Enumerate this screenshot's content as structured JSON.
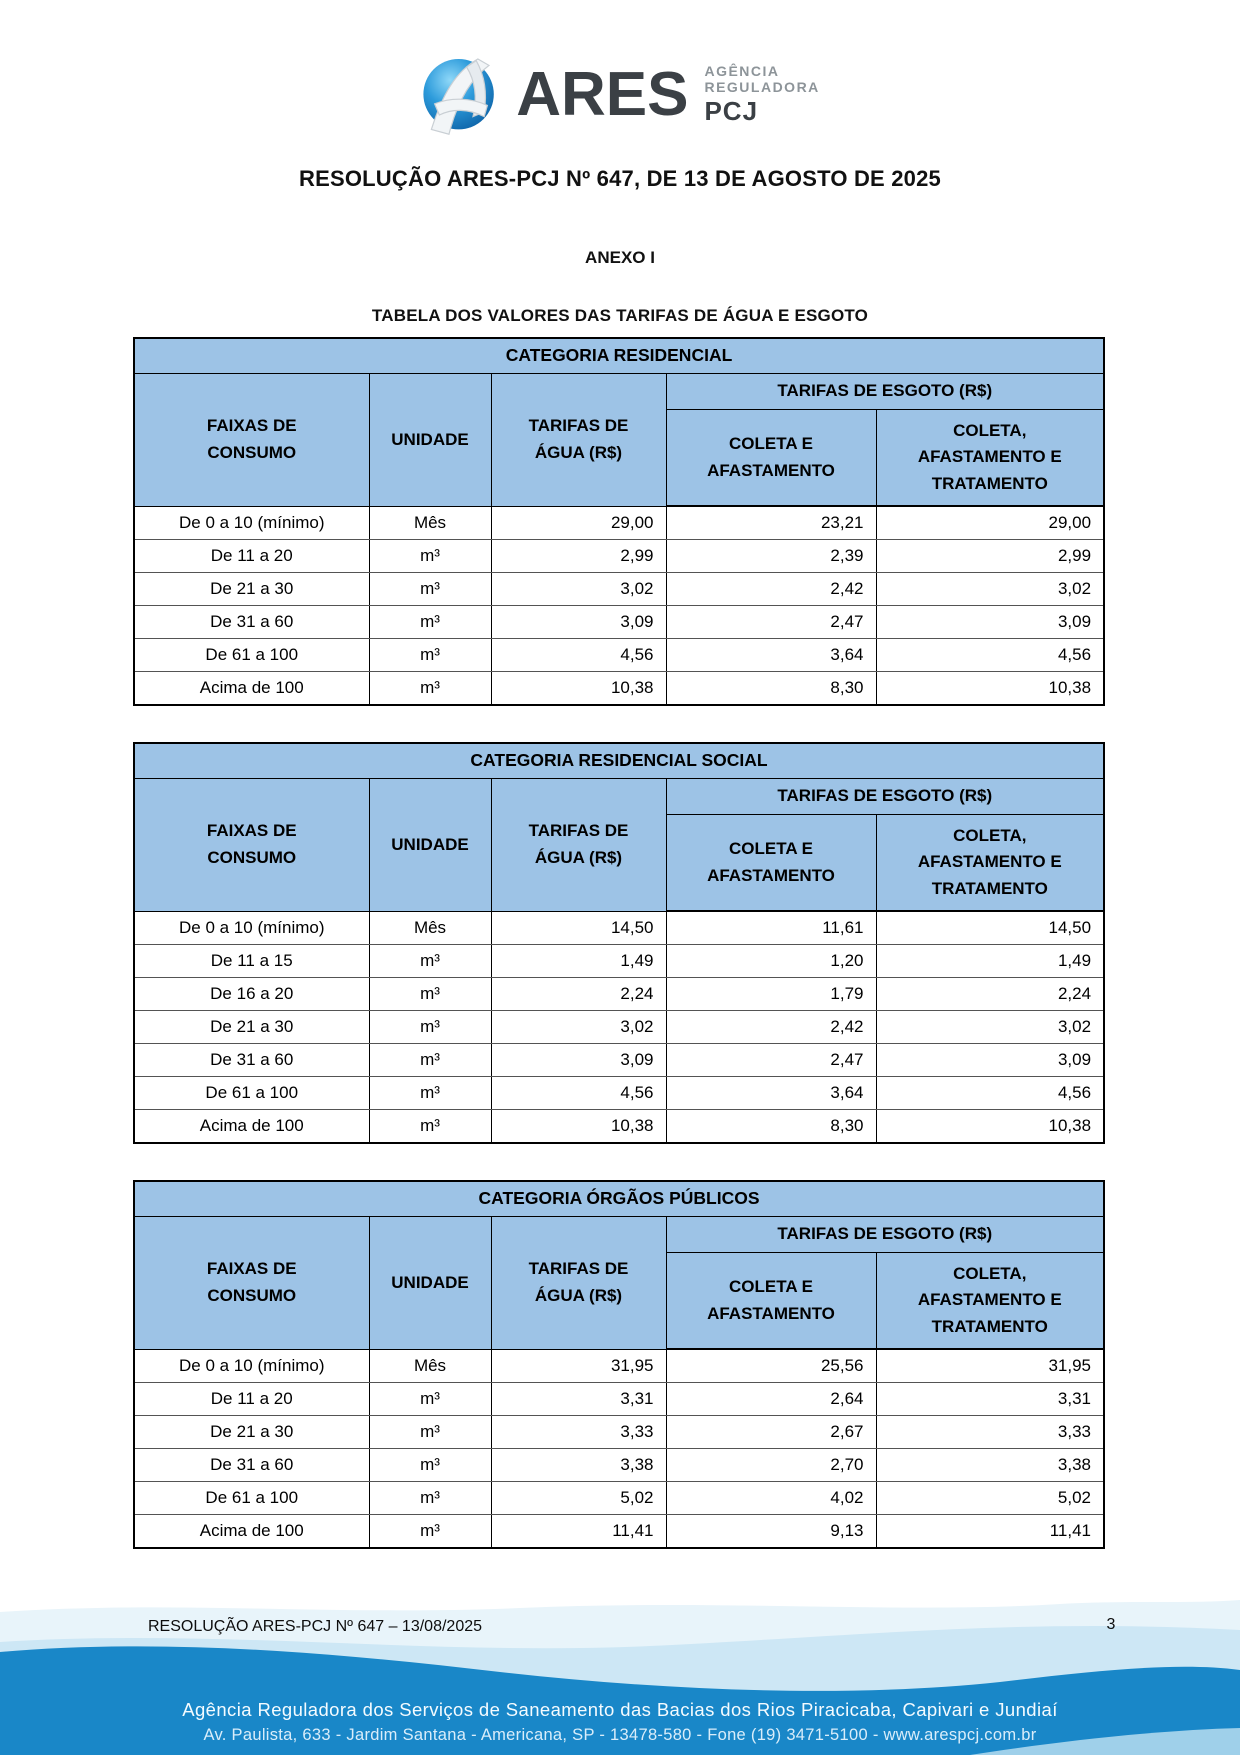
{
  "logo": {
    "brand": "ARES",
    "agency_line1": "AGÊNCIA",
    "agency_line2": "REGULADORA",
    "agency_line3": "PCJ"
  },
  "document": {
    "title": "RESOLUÇÃO ARES-PCJ Nº 647, DE 13 DE AGOSTO DE 2025",
    "annex": "ANEXO I",
    "table_caption": "TABELA DOS VALORES DAS TARIFAS DE ÁGUA E ESGOTO"
  },
  "table_headers": {
    "faixas": "FAIXAS DE CONSUMO",
    "unidade": "UNIDADE",
    "agua": "TARIFAS DE ÁGUA (R$)",
    "esgoto": "TARIFAS DE ESGOTO (R$)",
    "coleta": "COLETA E AFASTAMENTO",
    "coleta_tratamento": "COLETA, AFASTAMENTO E TRATAMENTO"
  },
  "tables": [
    {
      "category": "CATEGORIA RESIDENCIAL",
      "rows": [
        [
          "De 0 a 10 (mínimo)",
          "Mês",
          "29,00",
          "23,21",
          "29,00"
        ],
        [
          "De 11 a 20",
          "m³",
          "2,99",
          "2,39",
          "2,99"
        ],
        [
          "De 21 a 30",
          "m³",
          "3,02",
          "2,42",
          "3,02"
        ],
        [
          "De 31 a 60",
          "m³",
          "3,09",
          "2,47",
          "3,09"
        ],
        [
          "De 61 a 100",
          "m³",
          "4,56",
          "3,64",
          "4,56"
        ],
        [
          "Acima de 100",
          "m³",
          "10,38",
          "8,30",
          "10,38"
        ]
      ]
    },
    {
      "category": "CATEGORIA RESIDENCIAL SOCIAL",
      "rows": [
        [
          "De 0 a 10 (mínimo)",
          "Mês",
          "14,50",
          "11,61",
          "14,50"
        ],
        [
          "De 11 a 15",
          "m³",
          "1,49",
          "1,20",
          "1,49"
        ],
        [
          "De 16 a 20",
          "m³",
          "2,24",
          "1,79",
          "2,24"
        ],
        [
          "De 21 a 30",
          "m³",
          "3,02",
          "2,42",
          "3,02"
        ],
        [
          "De 31 a 60",
          "m³",
          "3,09",
          "2,47",
          "3,09"
        ],
        [
          "De 61 a 100",
          "m³",
          "4,56",
          "3,64",
          "4,56"
        ],
        [
          "Acima de 100",
          "m³",
          "10,38",
          "8,30",
          "10,38"
        ]
      ]
    },
    {
      "category": "CATEGORIA ÓRGÃOS PÚBLICOS",
      "rows": [
        [
          "De 0 a 10 (mínimo)",
          "Mês",
          "31,95",
          "25,56",
          "31,95"
        ],
        [
          "De 11 a 20",
          "m³",
          "3,31",
          "2,64",
          "3,31"
        ],
        [
          "De 21 a 30",
          "m³",
          "3,33",
          "2,67",
          "3,33"
        ],
        [
          "De 31 a 60",
          "m³",
          "3,38",
          "2,70",
          "3,38"
        ],
        [
          "De 61 a 100",
          "m³",
          "5,02",
          "4,02",
          "5,02"
        ],
        [
          "Acima de 100",
          "m³",
          "11,41",
          "9,13",
          "11,41"
        ]
      ]
    }
  ],
  "footer": {
    "left_text": "RESOLUÇÃO ARES-PCJ Nº 647 – 13/08/2025",
    "page_number": "3",
    "banner_line1": "Agência Reguladora dos Serviços de Saneamento das Bacias dos Rios Piracicaba, Capivari e Jundiaí",
    "banner_line2": "Av. Paulista, 633 - Jardim Santana - Americana, SP - 13478-580 - Fone (19) 3471-5100 - www.arespcj.com.br"
  },
  "colors": {
    "header_blue": "#9DC3E6",
    "banner_blue": "#1987C8",
    "wave_light": "#E8F4FA",
    "wave_mid": "#CDE7F5",
    "wave_accent": "#9FD0EA",
    "globe_blue": "#1E90D4",
    "logo_dark": "#3B4045",
    "logo_gray": "#8D9499"
  }
}
